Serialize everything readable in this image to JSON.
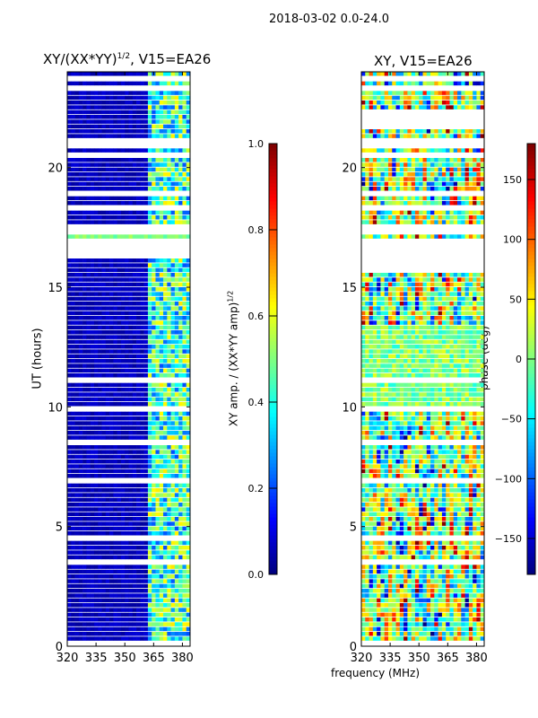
{
  "chart_data": {
    "suptitle": "2018-03-02 0.0-24.0",
    "xlabel": "frequency (MHz)",
    "panels": [
      {
        "type": "heatmap",
        "title": "XY/(XX*YY)^1/2, V15=EA26",
        "title_main": "XY/(XX*YY)",
        "title_sup": "1/2",
        "title_tail": ", V15=EA26",
        "ylabel": "UT (hours)",
        "xlim": [
          320,
          384
        ],
        "ylim": [
          0,
          24
        ],
        "xticks": [
          "320",
          "335",
          "350",
          "365",
          "380"
        ],
        "xtick_values": [
          320,
          335,
          350,
          365,
          380
        ],
        "yticks": [
          "0",
          "5",
          "10",
          "15",
          "20"
        ],
        "ytick_values": [
          0,
          5,
          10,
          15,
          20
        ],
        "colormap": "jet",
        "colorbar": {
          "label_main": "XY amp. / (XX*YY amp)",
          "label_sup": "1/2",
          "range": [
            0.0,
            1.0
          ],
          "ticks": [
            "0.0",
            "0.2",
            "0.4",
            "0.6",
            "0.8",
            "1.0"
          ],
          "tick_values": [
            0,
            0.2,
            0.4,
            0.6,
            0.8,
            1.0
          ]
        },
        "description_values": {
          "background_level": 0.05,
          "bright_band_MHz": [
            362,
            383
          ],
          "bright_band_level": 0.5
        },
        "gaps_hours": [
          [
            16.3,
            16.9
          ]
        ]
      },
      {
        "type": "heatmap",
        "title": "XY, V15=EA26",
        "ylabel": "",
        "xlim": [
          320,
          384
        ],
        "ylim": [
          0,
          24
        ],
        "xticks": [
          "320",
          "335",
          "350",
          "365",
          "380"
        ],
        "xtick_values": [
          320,
          335,
          350,
          365,
          380
        ],
        "yticks": [
          "0",
          "5",
          "10",
          "15",
          "20"
        ],
        "ytick_values": [
          0,
          5,
          10,
          15,
          20
        ],
        "colormap": "jet",
        "colorbar": {
          "label_main": "phase (deg)",
          "range": [
            -180,
            180
          ],
          "ticks": [
            "−150",
            "−100",
            "−50",
            "0",
            "50",
            "100",
            "150"
          ],
          "tick_values": [
            -150,
            -100,
            -50,
            0,
            50,
            100,
            150
          ]
        },
        "gaps_hours": [
          [
            15.6,
            16.9
          ],
          [
            21.6,
            22.4
          ]
        ]
      }
    ]
  }
}
